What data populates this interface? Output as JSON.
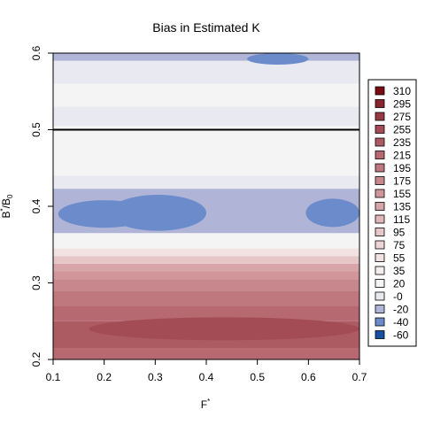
{
  "chart_data": {
    "type": "heatmap",
    "title": "Bias in Estimated K",
    "xlabel": "F*",
    "ylabel": "B*/B0",
    "xlim": [
      0.1,
      0.7
    ],
    "ylim": [
      0.2,
      0.6
    ],
    "x_ticks": [
      "0.1",
      "0.2",
      "0.3",
      "0.4",
      "0.5",
      "0.6",
      "0.7"
    ],
    "y_ticks": [
      "0.2",
      "0.3",
      "0.4",
      "0.5",
      "0.6"
    ],
    "reference_line": {
      "orientation": "horizontal",
      "y": 0.5,
      "color": "#000000"
    },
    "legend_position": "right",
    "legend": [
      {
        "label": "310",
        "color": "#7a0a14"
      },
      {
        "label": "295",
        "color": "#8a2530"
      },
      {
        "label": "275",
        "color": "#963a44"
      },
      {
        "label": "255",
        "color": "#a34c55"
      },
      {
        "label": "235",
        "color": "#ad5b63"
      },
      {
        "label": "215",
        "color": "#b66970"
      },
      {
        "label": "195",
        "color": "#bf787e"
      },
      {
        "label": "175",
        "color": "#c8878c"
      },
      {
        "label": "155",
        "color": "#d0969a"
      },
      {
        "label": "135",
        "color": "#d8a6a9"
      },
      {
        "label": "115",
        "color": "#e0b6b8"
      },
      {
        "label": "95",
        "color": "#e7c6c7"
      },
      {
        "label": "75",
        "color": "#edd5d6"
      },
      {
        "label": "55",
        "color": "#f2e2e2"
      },
      {
        "label": "35",
        "color": "#f5ecec"
      },
      {
        "label": "20",
        "color": "#f4f4f4"
      },
      {
        "label": "-0",
        "color": "#e8e9f1"
      },
      {
        "label": "-20",
        "color": "#b0b5d8"
      },
      {
        "label": "-40",
        "color": "#6b8bcb"
      },
      {
        "label": "-60",
        "color": "#154fa0"
      }
    ],
    "bands": [
      {
        "y": [
          0.2,
          0.215
        ],
        "bias": 215
      },
      {
        "y": [
          0.215,
          0.25
        ],
        "bias": 235
      },
      {
        "y": [
          0.25,
          0.27
        ],
        "bias": 215
      },
      {
        "y": [
          0.27,
          0.29
        ],
        "bias": 195
      },
      {
        "y": [
          0.29,
          0.305
        ],
        "bias": 175
      },
      {
        "y": [
          0.305,
          0.315
        ],
        "bias": 155
      },
      {
        "y": [
          0.315,
          0.325
        ],
        "bias": 135
      },
      {
        "y": [
          0.325,
          0.335
        ],
        "bias": 95
      },
      {
        "y": [
          0.335,
          0.345
        ],
        "bias": 55
      },
      {
        "y": [
          0.345,
          0.365
        ],
        "bias": 20
      },
      {
        "y": [
          0.365,
          0.423
        ],
        "bias": -20
      },
      {
        "y": [
          0.423,
          0.44
        ],
        "bias": 0
      },
      {
        "y": [
          0.44,
          0.505
        ],
        "bias": 20
      },
      {
        "y": [
          0.505,
          0.53
        ],
        "bias": 0
      },
      {
        "y": [
          0.53,
          0.56
        ],
        "bias": 20
      },
      {
        "y": [
          0.56,
          0.59
        ],
        "bias": 0
      },
      {
        "y": [
          0.59,
          0.6
        ],
        "bias": -20
      }
    ],
    "regions": [
      {
        "x": [
          0.11,
          0.29
        ],
        "y": [
          0.372,
          0.408
        ],
        "bias": -40
      },
      {
        "x": [
          0.21,
          0.4
        ],
        "y": [
          0.368,
          0.415
        ],
        "bias": -40
      },
      {
        "x": [
          0.595,
          0.7
        ],
        "y": [
          0.373,
          0.41
        ],
        "bias": -40
      },
      {
        "x": [
          0.48,
          0.6
        ],
        "y": [
          0.585,
          0.6
        ],
        "bias": -40
      },
      {
        "x": [
          0.17,
          0.7
        ],
        "y": [
          0.225,
          0.255
        ],
        "bias": 255
      }
    ]
  }
}
